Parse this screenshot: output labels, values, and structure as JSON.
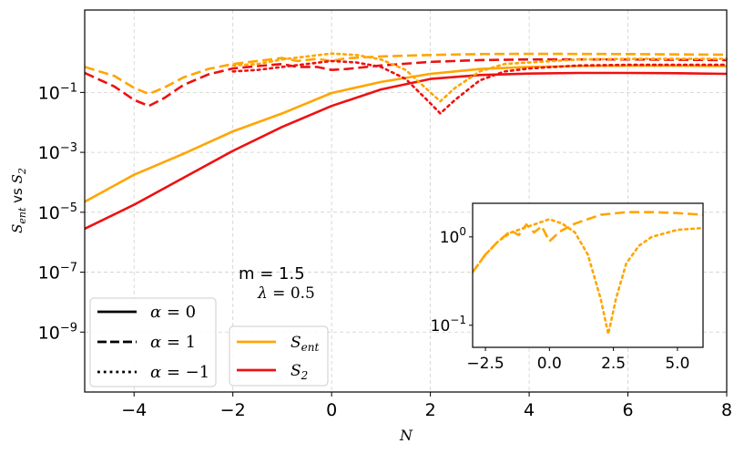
{
  "colors": {
    "s_ent": "#FFA500",
    "s2": "#EE1111",
    "axis": "#000000",
    "grid": "#cfcfcf"
  },
  "chart_data": {
    "type": "line",
    "xlabel": "N",
    "ylabel_parts": {
      "s_ent_base": "S",
      "s_ent_sub": "ent",
      "vs": " vs ",
      "s2_base": "S",
      "s2_sub": "2"
    },
    "yscale": "log",
    "xlim": [
      -5,
      8
    ],
    "ylim_log10": [
      -11,
      1.75
    ],
    "x_ticks": [
      -4,
      -2,
      0,
      2,
      4,
      6,
      8
    ],
    "x_tick_labels": [
      "−4",
      "−2",
      "0",
      "2",
      "4",
      "6",
      "8"
    ],
    "y_ticks_log10": [
      -9,
      -7,
      -5,
      -3,
      -1
    ],
    "y_tick_base": "10",
    "y_tick_exps": [
      "−9",
      "−7",
      "−5",
      "−3",
      "−1"
    ],
    "grid": true,
    "annotations": {
      "m_label": "m = 1.5",
      "lambda_sym": "λ",
      "lambda_val": " = 0.5"
    },
    "linestyle_legend": [
      {
        "label_sym": "α",
        "label_val": " = 0",
        "style": "solid"
      },
      {
        "label_sym": "α",
        "label_val": " = 1",
        "style": "dashed"
      },
      {
        "label_sym": "α",
        "label_val": " = −1",
        "style": "dotted"
      }
    ],
    "color_legend": [
      {
        "base": "S",
        "sub": "ent",
        "color": "#FFA500"
      },
      {
        "base": "S",
        "sub": "2",
        "color": "#EE1111"
      }
    ],
    "series": [
      {
        "name": "S_ent alpha=0",
        "color": "#FFA500",
        "style": "solid",
        "x": [
          -5,
          -4,
          -3,
          -2,
          -1,
          0,
          1,
          2,
          3,
          4,
          5,
          6,
          7,
          8
        ],
        "log10_y": [
          -4.65,
          -3.75,
          -3.05,
          -2.3,
          -1.7,
          -1.02,
          -0.65,
          -0.38,
          -0.22,
          -0.15,
          -0.12,
          -0.11,
          -0.11,
          -0.12
        ]
      },
      {
        "name": "S2 alpha=0",
        "color": "#EE1111",
        "style": "solid",
        "x": [
          -5,
          -4,
          -3,
          -2,
          -1,
          0,
          1,
          2,
          3,
          4,
          5,
          6,
          7,
          8
        ],
        "log10_y": [
          -5.55,
          -4.75,
          -3.85,
          -2.95,
          -2.15,
          -1.45,
          -0.9,
          -0.55,
          -0.42,
          -0.37,
          -0.35,
          -0.35,
          -0.36,
          -0.38
        ]
      },
      {
        "name": "S_ent alpha=1",
        "color": "#FFA500",
        "style": "dashed",
        "x": [
          -5,
          -4.4,
          -4.0,
          -3.7,
          -3.4,
          -3.0,
          -2.5,
          -2.0,
          -1.5,
          -1.0,
          -0.7,
          -0.3,
          0,
          0.3,
          1,
          2,
          3,
          4,
          6,
          8
        ],
        "log10_y": [
          -0.15,
          -0.45,
          -0.85,
          -1.05,
          -0.85,
          -0.5,
          -0.22,
          -0.05,
          0.05,
          0.15,
          0.05,
          0.12,
          0.05,
          0.14,
          0.2,
          0.25,
          0.28,
          0.29,
          0.28,
          0.26
        ]
      },
      {
        "name": "S2 alpha=1",
        "color": "#EE1111",
        "style": "dashed",
        "x": [
          -5,
          -4.4,
          -4.0,
          -3.7,
          -3.4,
          -3.0,
          -2.5,
          -2.0,
          -1.5,
          -1.0,
          -0.7,
          -0.3,
          0,
          0.3,
          1,
          2,
          3,
          4,
          6,
          8
        ],
        "log10_y": [
          -0.35,
          -0.8,
          -1.25,
          -1.45,
          -1.2,
          -0.75,
          -0.4,
          -0.2,
          -0.12,
          -0.05,
          -0.15,
          -0.15,
          -0.25,
          -0.22,
          -0.1,
          0.02,
          0.08,
          0.1,
          0.1,
          0.08
        ]
      },
      {
        "name": "S_ent alpha=-1",
        "color": "#FFA500",
        "style": "dotted",
        "x": [
          -2.0,
          -1.5,
          -1.0,
          -0.5,
          0,
          0.5,
          1,
          1.5,
          1.9,
          2.2,
          2.5,
          3.0,
          3.5,
          4,
          5,
          6,
          8
        ],
        "log10_y": [
          -0.1,
          -0.05,
          0.1,
          0.2,
          0.3,
          0.25,
          0.1,
          -0.25,
          -0.85,
          -1.3,
          -0.85,
          -0.3,
          -0.05,
          0.0,
          0.1,
          0.12,
          0.12
        ]
      },
      {
        "name": "S2 alpha=-1",
        "color": "#EE1111",
        "style": "dotted",
        "x": [
          -2.0,
          -1.5,
          -1.0,
          -0.5,
          0,
          0.5,
          1,
          1.5,
          1.9,
          2.2,
          2.5,
          3.0,
          3.5,
          4,
          5,
          6,
          8
        ],
        "log10_y": [
          -0.3,
          -0.25,
          -0.15,
          -0.05,
          0.05,
          0.0,
          -0.15,
          -0.55,
          -1.2,
          -1.7,
          -1.25,
          -0.6,
          -0.3,
          -0.2,
          -0.1,
          -0.08,
          -0.08
        ]
      }
    ],
    "inset": {
      "xlim": [
        -3,
        6
      ],
      "ylim_log10": [
        -1.25,
        0.38
      ],
      "x_ticks": [
        -2.5,
        0.0,
        2.5,
        5.0
      ],
      "x_tick_labels": [
        "−2.5",
        "0.0",
        "2.5",
        "5.0"
      ],
      "y_ticks_log10": [
        0,
        -1
      ],
      "y_tick_labels": [
        {
          "base": "10",
          "exp": "0"
        },
        {
          "base": "10",
          "exp": "−1"
        }
      ],
      "series": [
        {
          "name": "S_ent alpha=1 (inset)",
          "color": "#FFA500",
          "style": "dashed",
          "x": [
            -3,
            -2.5,
            -2,
            -1.5,
            -1.2,
            -0.9,
            -0.6,
            -0.3,
            0,
            0.4,
            1,
            2,
            3,
            4,
            5,
            6
          ],
          "log10_y": [
            -0.4,
            -0.2,
            -0.05,
            0.07,
            0.02,
            0.14,
            0.05,
            0.12,
            -0.05,
            0.06,
            0.15,
            0.25,
            0.28,
            0.28,
            0.27,
            0.25
          ]
        },
        {
          "name": "S_ent alpha=-1 (inset)",
          "color": "#FFA500",
          "style": "dotted",
          "x": [
            -3,
            -2.5,
            -2,
            -1.5,
            -1,
            -0.5,
            0,
            0.5,
            1,
            1.5,
            2.0,
            2.3,
            2.6,
            3,
            3.5,
            4,
            5,
            6
          ],
          "log10_y": [
            -0.4,
            -0.2,
            -0.05,
            0.05,
            0.1,
            0.15,
            0.2,
            0.15,
            0.05,
            -0.2,
            -0.7,
            -1.1,
            -0.7,
            -0.3,
            -0.1,
            0.0,
            0.08,
            0.1
          ]
        }
      ]
    }
  }
}
